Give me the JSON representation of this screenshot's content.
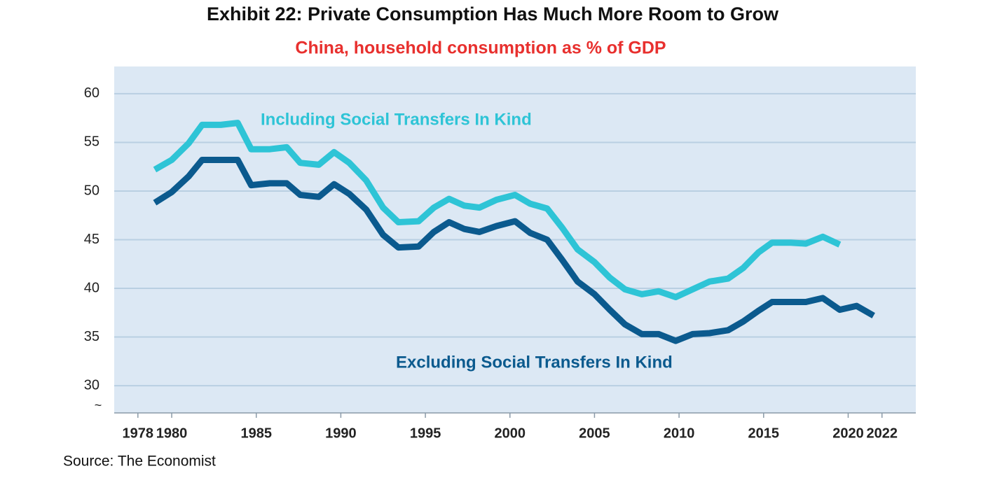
{
  "chart_data": {
    "type": "line",
    "title": "Exhibit 22: Private Consumption Has Much More Room to Grow",
    "subtitle": "China, household consumption as % of GDP",
    "source": "Source: The Economist",
    "axis_break": "~",
    "x": [
      1979,
      1980,
      1981,
      1981.8,
      1982.9,
      1983.9,
      1984.7,
      1985.8,
      1986.8,
      1987.6,
      1988.7,
      1989.6,
      1990.5,
      1991.5,
      1992.5,
      1993.4,
      1994.6,
      1995.5,
      1996.4,
      1997.3,
      1998.2,
      1999.2,
      2000.3,
      2001.2,
      2002.2,
      2003.1,
      2004,
      2005,
      2005.9,
      2006.8,
      2007.8,
      2008.8,
      2009.8,
      2010.8,
      2011.8,
      2012.9,
      2013.8,
      2014.7,
      2015.5,
      2016.6,
      2017.5,
      2018.5,
      2019.5,
      2020.5,
      2021.5
    ],
    "series": [
      {
        "name": "Including Social Transfers In Kind",
        "color": "#2ec4d6",
        "values": [
          52.2,
          53.2,
          54.9,
          56.8,
          56.8,
          57.0,
          54.3,
          54.3,
          54.5,
          52.9,
          52.7,
          54.0,
          52.9,
          51.1,
          48.3,
          46.8,
          46.9,
          48.3,
          49.2,
          48.5,
          48.3,
          49.1,
          49.6,
          48.7,
          48.2,
          46.2,
          44.0,
          42.7,
          41.1,
          39.9,
          39.4,
          39.7,
          39.1,
          39.9,
          40.7,
          41.0,
          42.1,
          43.7,
          44.7,
          44.7,
          44.6,
          45.3,
          44.5,
          null,
          null
        ]
      },
      {
        "name": "Excluding Social Transfers In Kind",
        "color": "#0b5a8e",
        "values": [
          48.8,
          49.9,
          51.5,
          53.2,
          53.2,
          53.2,
          50.6,
          50.8,
          50.8,
          49.6,
          49.4,
          50.7,
          49.7,
          48.1,
          45.5,
          44.2,
          44.3,
          45.8,
          46.8,
          46.1,
          45.8,
          46.4,
          46.9,
          45.7,
          45.0,
          42.9,
          40.7,
          39.4,
          37.8,
          36.3,
          35.3,
          35.3,
          34.6,
          35.3,
          35.4,
          35.7,
          36.6,
          37.7,
          38.6,
          38.6,
          38.6,
          39.0,
          37.8,
          38.2,
          37.2
        ]
      }
    ],
    "xlim": [
      1976.6,
      2024
    ],
    "xticks": [
      1978,
      1980,
      1985,
      1990,
      1995,
      2000,
      2005,
      2010,
      2015,
      2020,
      2022
    ],
    "ylim": [
      27.2,
      62.8
    ],
    "yticks": [
      30,
      35,
      40,
      45,
      50,
      55,
      60
    ],
    "grid": true
  }
}
